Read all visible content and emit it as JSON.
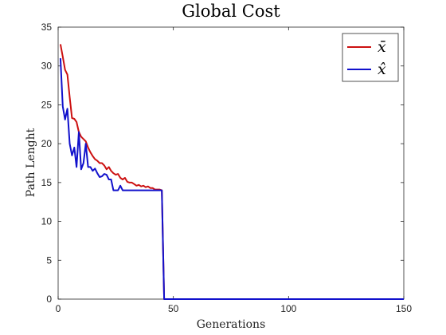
{
  "chart_data": {
    "type": "line",
    "title": "Global Cost",
    "xlabel": "Generations",
    "ylabel": "Path Lenght",
    "xlim": [
      0,
      150
    ],
    "ylim": [
      0,
      35
    ],
    "xticks": [
      0,
      50,
      100,
      150
    ],
    "yticks": [
      0,
      5,
      10,
      15,
      20,
      25,
      30,
      35
    ],
    "grid": false,
    "legend_position": "top-right",
    "series": [
      {
        "name": "x̄",
        "color": "#cc1111",
        "x": [
          1,
          2,
          3,
          4,
          5,
          6,
          7,
          8,
          9,
          10,
          11,
          12,
          13,
          14,
          15,
          16,
          17,
          18,
          19,
          20,
          21,
          22,
          23,
          24,
          25,
          26,
          27,
          28,
          29,
          30,
          31,
          32,
          33,
          34,
          35,
          36,
          37,
          38,
          39,
          40,
          41,
          42,
          43,
          44,
          45,
          46,
          50,
          60,
          70,
          80,
          90,
          100,
          110,
          120,
          130,
          140,
          150
        ],
        "values": [
          32.8,
          31.2,
          29.5,
          28.9,
          26.0,
          23.3,
          23.2,
          22.8,
          21.5,
          20.9,
          20.6,
          20.3,
          19.5,
          18.9,
          18.4,
          18.0,
          17.8,
          17.5,
          17.5,
          17.2,
          16.7,
          17.0,
          16.5,
          16.2,
          16.0,
          16.1,
          15.6,
          15.4,
          15.6,
          15.1,
          15.0,
          15.0,
          14.8,
          14.6,
          14.7,
          14.5,
          14.6,
          14.4,
          14.5,
          14.3,
          14.3,
          14.1,
          14.1,
          14.1,
          14.0,
          0,
          0,
          0,
          0,
          0,
          0,
          0,
          0,
          0,
          0,
          0,
          0
        ]
      },
      {
        "name": "x̂",
        "color": "#1111cc",
        "x": [
          1,
          2,
          3,
          4,
          5,
          6,
          7,
          8,
          9,
          10,
          11,
          12,
          13,
          14,
          15,
          16,
          17,
          18,
          19,
          20,
          21,
          22,
          23,
          24,
          25,
          26,
          27,
          28,
          29,
          30,
          31,
          32,
          33,
          34,
          35,
          36,
          37,
          38,
          39,
          40,
          41,
          42,
          43,
          44,
          45,
          46,
          50,
          60,
          70,
          80,
          90,
          100,
          110,
          120,
          130,
          140,
          150
        ],
        "values": [
          31.0,
          24.8,
          23.1,
          24.5,
          20.0,
          18.5,
          19.5,
          17.0,
          21.5,
          16.7,
          17.5,
          20.0,
          17.0,
          17.0,
          16.5,
          16.8,
          16.2,
          15.7,
          15.8,
          16.1,
          16.0,
          15.4,
          15.4,
          14.0,
          14.0,
          14.0,
          14.6,
          14.0,
          14.0,
          14.0,
          14.0,
          14.0,
          14.0,
          14.0,
          14.0,
          14.0,
          14.0,
          14.0,
          14.0,
          14.0,
          14.0,
          14.0,
          14.0,
          14.0,
          14.0,
          0,
          0,
          0,
          0,
          0,
          0,
          0,
          0,
          0,
          0,
          0,
          0
        ]
      }
    ]
  }
}
